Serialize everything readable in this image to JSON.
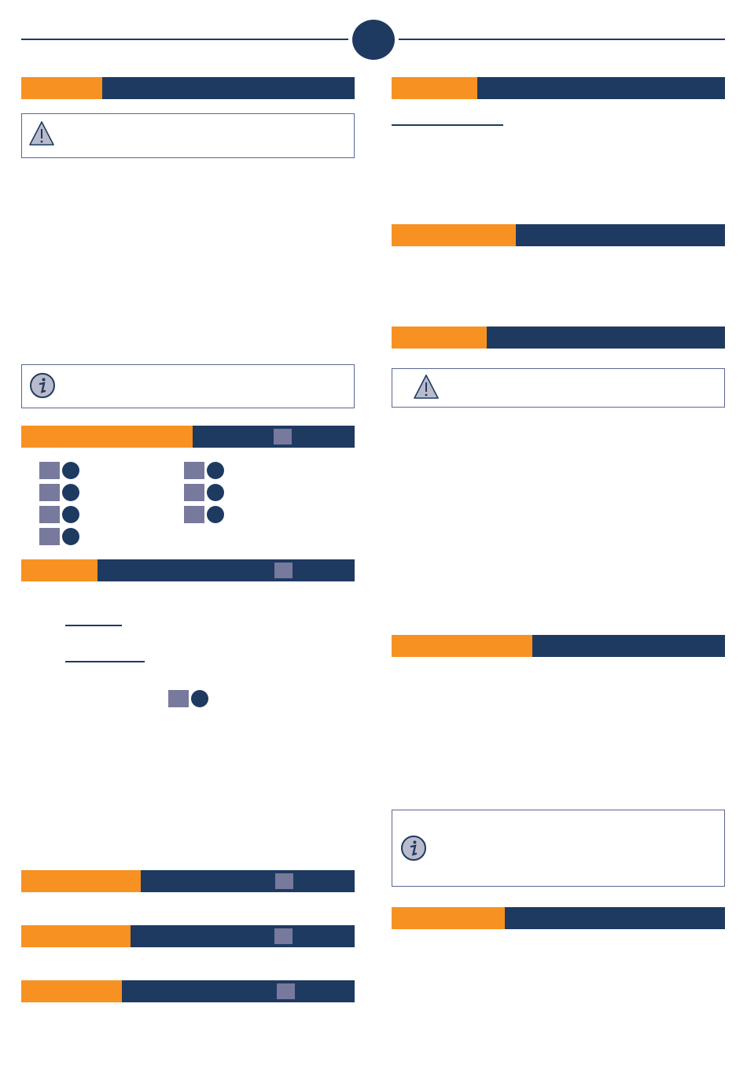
{
  "colors": {
    "navy": "#1f3a61",
    "orange": "#f79122",
    "marker_gray": "#777a9c",
    "box_border": "#5a6690"
  },
  "icons": {
    "warning": "warning-triangle-icon",
    "info": "info-circle-icon"
  },
  "header": {
    "page_badge": ""
  }
}
